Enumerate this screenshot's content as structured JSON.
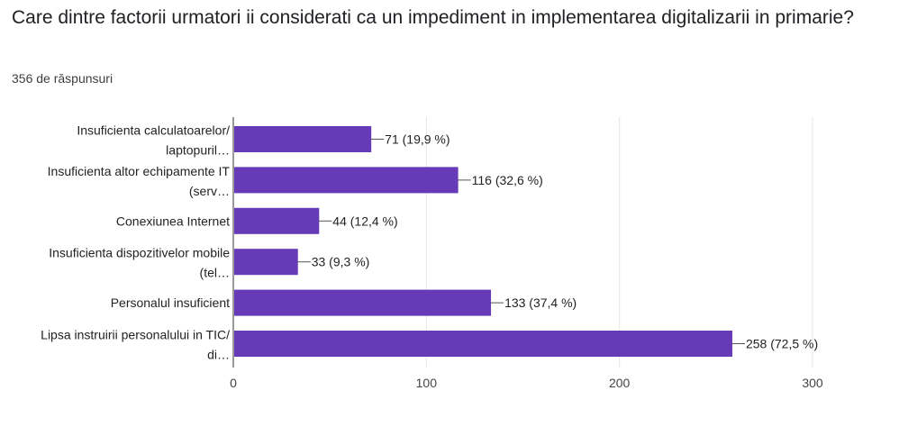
{
  "question": {
    "title": "Care dintre factorii urmatori ii considerati ca un impediment in implementarea digitalizarii in primarie?",
    "responses": "356 de răspunsuri"
  },
  "colors": {
    "bar": "#673ab7",
    "grid": "#e6e6e6",
    "axis": "#333333"
  },
  "chart_data": {
    "type": "bar",
    "orientation": "horizontal",
    "categories": [
      [
        "Insuficienta calculatoarelor/",
        "laptopuril…"
      ],
      [
        "Insuficienta altor echipamente IT",
        "(serv…"
      ],
      [
        "Conexiunea Internet"
      ],
      [
        "Insuficienta dispozitivelor mobile",
        "(tel…"
      ],
      [
        "Personalul insuficient"
      ],
      [
        "Lipsa instruirii personalului in TIC/",
        "di…"
      ]
    ],
    "values": [
      71,
      116,
      44,
      33,
      133,
      258
    ],
    "data_labels": [
      "71 (19,9 %)",
      "116 (32,6 %)",
      "44 (12,4 %)",
      "33 (9,3 %)",
      "133 (37,4 %)",
      "258 (72,5 %)"
    ],
    "xlim": [
      0,
      300
    ],
    "xticks": [
      0,
      100,
      200,
      300
    ],
    "grid": true
  }
}
